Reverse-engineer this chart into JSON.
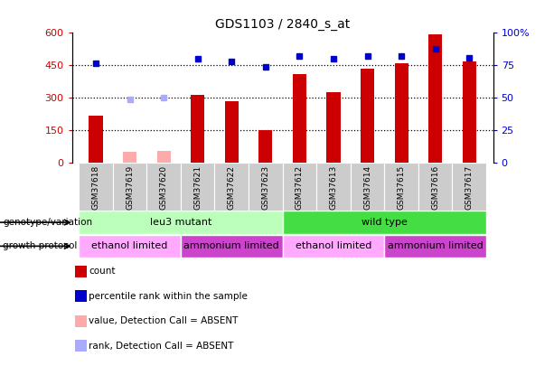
{
  "title": "GDS1103 / 2840_s_at",
  "samples": [
    "GSM37618",
    "GSM37619",
    "GSM37620",
    "GSM37621",
    "GSM37622",
    "GSM37623",
    "GSM37612",
    "GSM37613",
    "GSM37614",
    "GSM37615",
    "GSM37616",
    "GSM37617"
  ],
  "bar_values": [
    220,
    50,
    55,
    315,
    285,
    152,
    408,
    325,
    435,
    460,
    595,
    470
  ],
  "absent_bar_indices": [
    1,
    2
  ],
  "absent_bar_values": [
    50,
    55
  ],
  "blue_dot_values": [
    77,
    null,
    null,
    80,
    78,
    74,
    82,
    80,
    82,
    82,
    88,
    81
  ],
  "absent_rank_indices": [
    1,
    2
  ],
  "absent_rank_values": [
    49,
    50
  ],
  "ylim_left": [
    0,
    600
  ],
  "ylim_right": [
    0,
    100
  ],
  "yticks_left": [
    0,
    150,
    300,
    450,
    600
  ],
  "yticks_right": [
    0,
    25,
    50,
    75,
    100
  ],
  "ytick_labels_left": [
    "0",
    "150",
    "300",
    "450",
    "600"
  ],
  "ytick_labels_right": [
    "0",
    "25",
    "50",
    "75",
    "100%"
  ],
  "hlines": [
    150,
    300,
    450
  ],
  "genotype_groups": [
    {
      "label": "leu3 mutant",
      "start": 0,
      "end": 5,
      "color": "#bbffbb"
    },
    {
      "label": "wild type",
      "start": 6,
      "end": 11,
      "color": "#44dd44"
    }
  ],
  "growth_groups": [
    {
      "label": "ethanol limited",
      "start": 0,
      "end": 2,
      "color": "#ffaaff"
    },
    {
      "label": "ammonium limited",
      "start": 3,
      "end": 5,
      "color": "#cc44cc"
    },
    {
      "label": "ethanol limited",
      "start": 6,
      "end": 8,
      "color": "#ffaaff"
    },
    {
      "label": "ammonium limited",
      "start": 9,
      "end": 11,
      "color": "#cc44cc"
    }
  ],
  "legend_items": [
    {
      "label": "count",
      "color": "#cc0000"
    },
    {
      "label": "percentile rank within the sample",
      "color": "#0000cc"
    },
    {
      "label": "value, Detection Call = ABSENT",
      "color": "#ffaaaa"
    },
    {
      "label": "rank, Detection Call = ABSENT",
      "color": "#aaaaff"
    }
  ],
  "genotype_label": "genotype/variation",
  "growth_label": "growth protocol",
  "bar_width": 0.4,
  "xlim": [
    -0.7,
    11.7
  ]
}
